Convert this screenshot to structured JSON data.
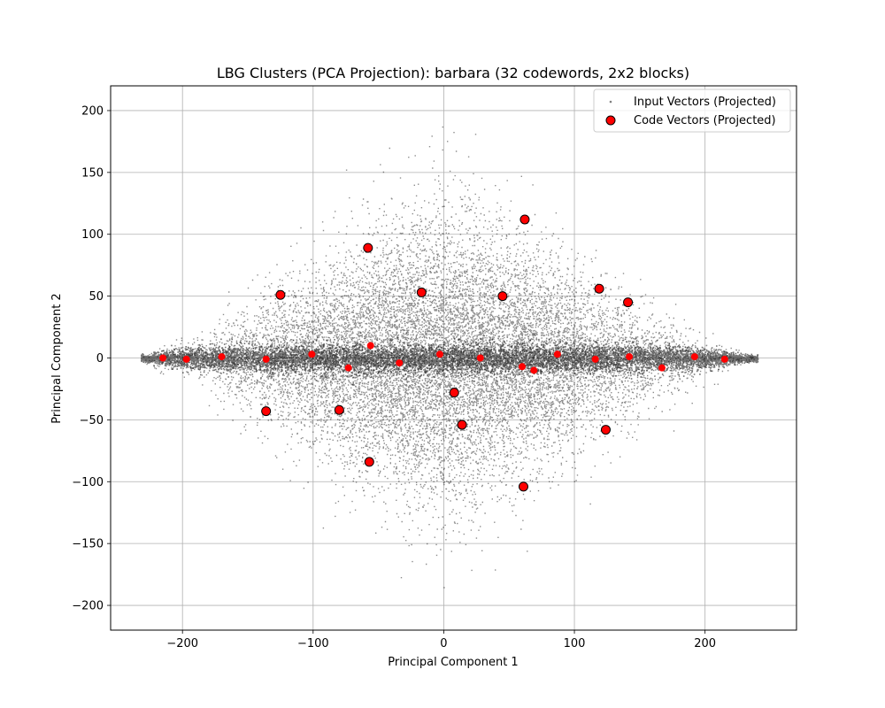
{
  "chart_data": {
    "type": "scatter",
    "title": "LBG Clusters (PCA Projection): barbara (32 codewords, 2x2 blocks)",
    "xlabel": "Principal Component 1",
    "ylabel": "Principal Component 2",
    "xlim": [
      -255,
      270
    ],
    "ylim": [
      -220,
      220
    ],
    "xticks": [
      -200,
      -100,
      0,
      100,
      200
    ],
    "yticks": [
      -200,
      -150,
      -100,
      -50,
      0,
      50,
      100,
      150,
      200
    ],
    "xtick_labels": [
      "−200",
      "−100",
      "0",
      "100",
      "200"
    ],
    "ytick_labels": [
      "−200",
      "−150",
      "−100",
      "−50",
      "0",
      "50",
      "100",
      "150",
      "200"
    ],
    "grid": true,
    "legend_position": "upper right",
    "series": [
      {
        "name": "Input Vectors (Projected)",
        "color": "#000000",
        "marker": "small dot",
        "note_count": "dense cloud",
        "distribution": {
          "x_range": [
            -232,
            240
          ],
          "y_range": [
            -200,
            200
          ],
          "band_y_halfwidth": 10
        }
      },
      {
        "name": "Code Vectors (Projected)",
        "color": "#ff0000",
        "edgecolor": "#000000",
        "marker": "circle",
        "x": [
          -215,
          -197,
          -170,
          -136,
          -125,
          -101,
          -80,
          -73,
          -58,
          -57,
          -56,
          -34,
          -17,
          -3,
          8,
          14,
          28,
          45,
          60,
          61,
          62,
          69,
          87,
          116,
          119,
          124,
          141,
          142,
          167,
          192,
          215,
          -136
        ],
        "y": [
          0,
          -1,
          1,
          -1,
          51,
          3,
          -42,
          -8,
          89,
          -84,
          10,
          -4,
          53,
          3,
          -28,
          -54,
          0,
          50,
          -7,
          -104,
          112,
          -10,
          3,
          -1,
          56,
          -58,
          45,
          1,
          -8,
          1,
          -1,
          -43
        ]
      }
    ]
  }
}
